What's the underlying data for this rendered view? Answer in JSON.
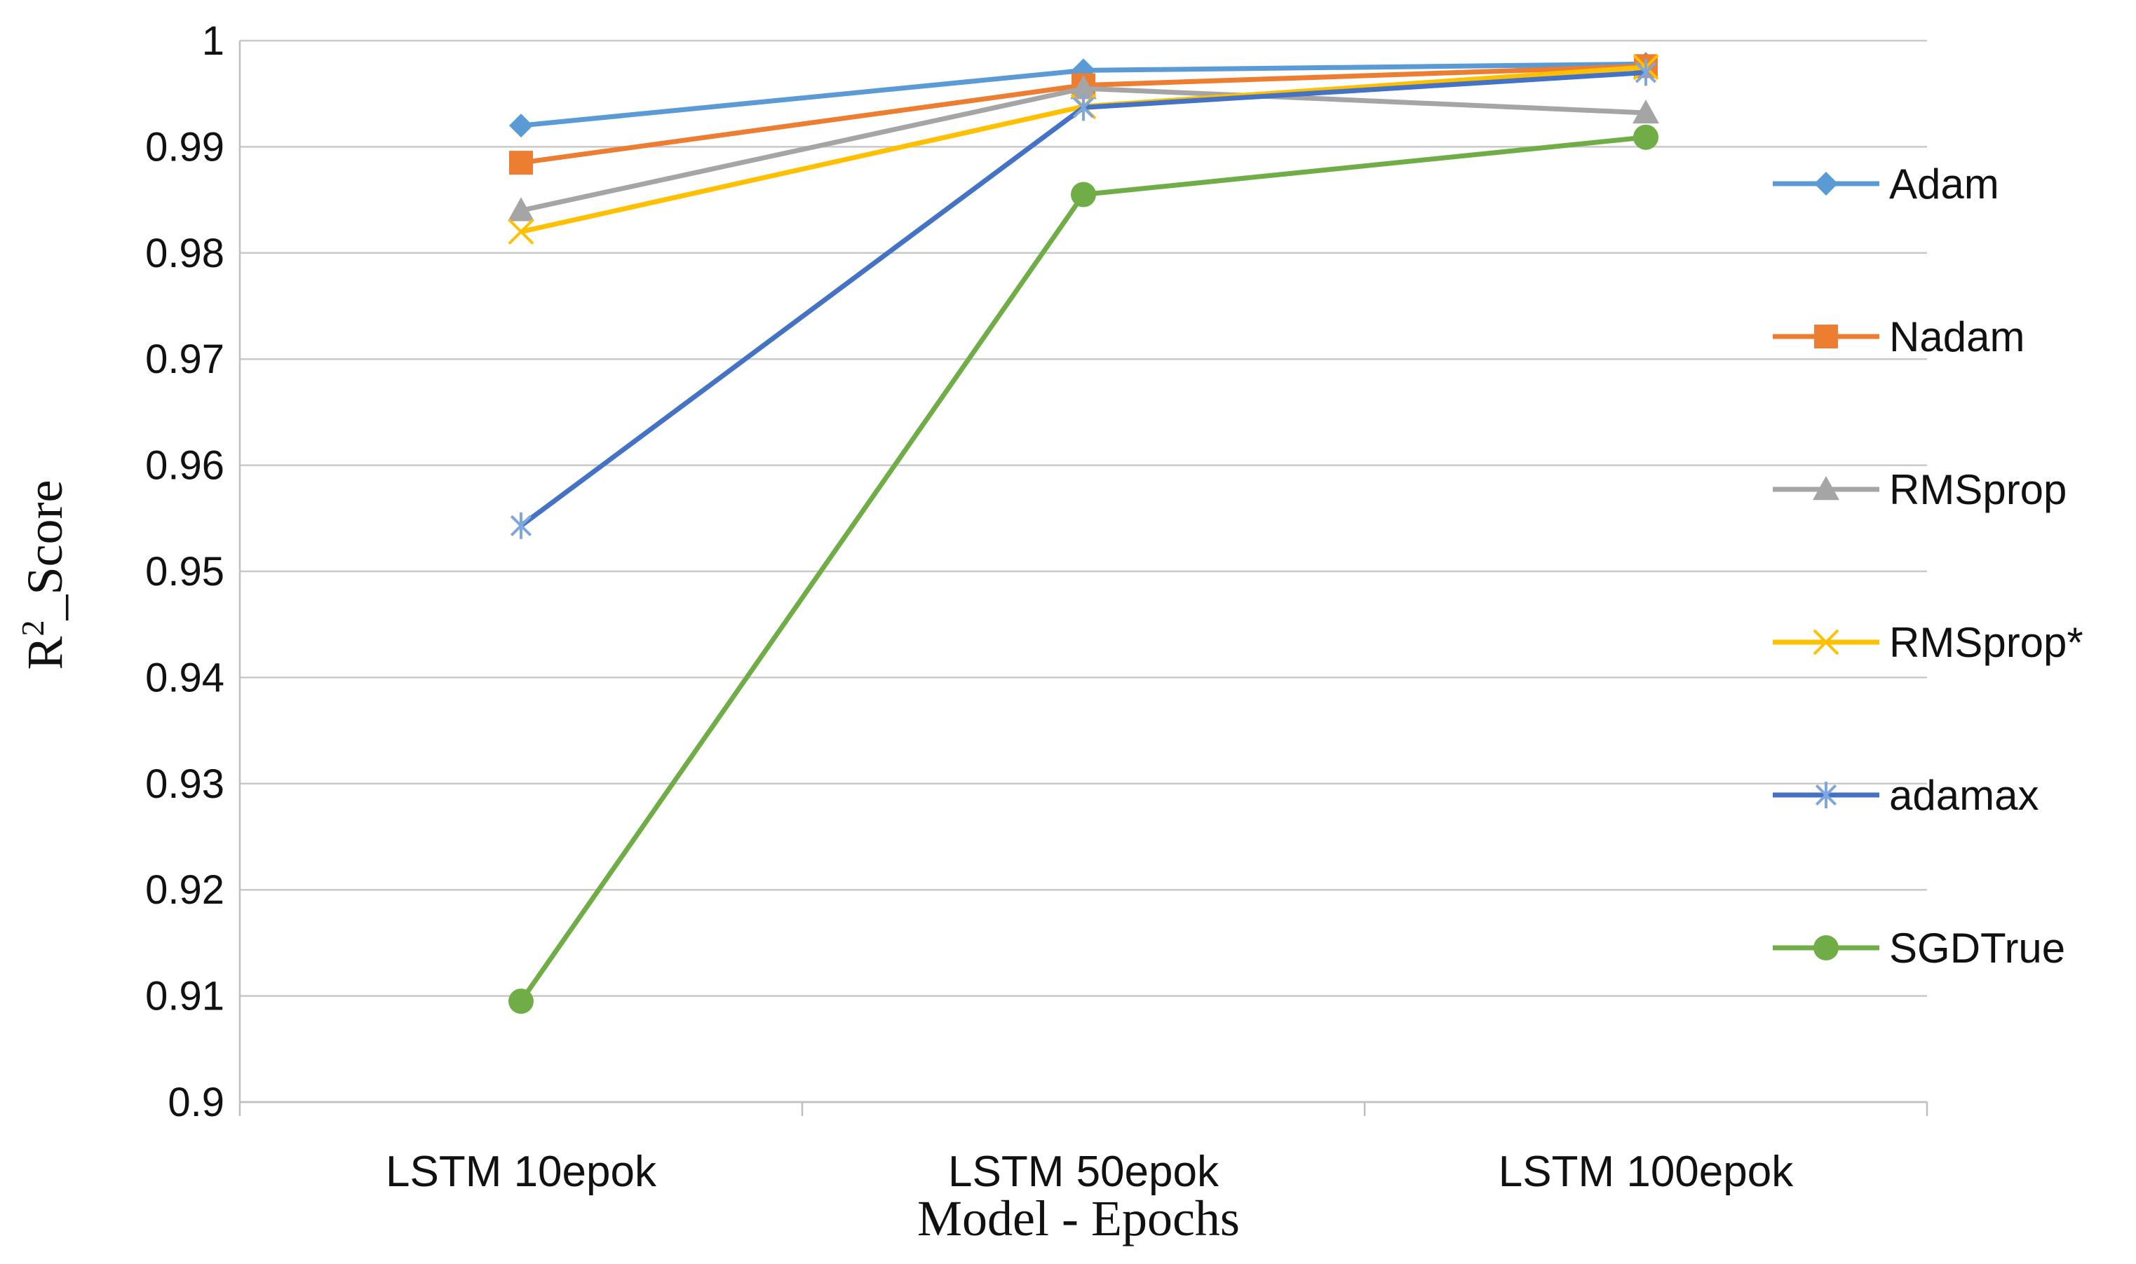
{
  "chart_data": {
    "type": "line",
    "categories": [
      "LSTM 10epok",
      "LSTM 50epok",
      "LSTM 100epok"
    ],
    "xlabel": "Model - Epochs",
    "ylabel_main": "R",
    "ylabel_sup": "2",
    "ylabel_rest": "_Score",
    "ylim": [
      0.9,
      1.0
    ],
    "yticks": [
      0.9,
      0.91,
      0.92,
      0.93,
      0.94,
      0.95,
      0.96,
      0.97,
      0.98,
      0.99,
      1.0
    ],
    "ytick_labels": [
      "0.9",
      "0.91",
      "0.92",
      "0.93",
      "0.94",
      "0.95",
      "0.96",
      "0.97",
      "0.98",
      "0.99",
      "1"
    ],
    "grid": true,
    "legend_position": "right",
    "series": [
      {
        "name": "Adam",
        "color": "#5B9BD5",
        "marker": "diamond",
        "values": [
          0.992,
          0.9972,
          0.9978
        ]
      },
      {
        "name": "Nadam",
        "color": "#ED7D31",
        "marker": "square",
        "values": [
          0.9885,
          0.9958,
          0.9976
        ]
      },
      {
        "name": "RMSprop",
        "color": "#A5A5A5",
        "marker": "triangle",
        "values": [
          0.984,
          0.9955,
          0.9932
        ]
      },
      {
        "name": "RMSprop*",
        "color": "#FFC000",
        "marker": "x",
        "values": [
          0.982,
          0.9938,
          0.9975
        ]
      },
      {
        "name": "adamax",
        "color": "#4472C4",
        "marker": "star",
        "values": [
          0.9543,
          0.9937,
          0.997
        ]
      },
      {
        "name": "SGDTrue",
        "color": "#70AD47",
        "marker": "circle",
        "values": [
          0.9095,
          0.9855,
          0.9909
        ]
      }
    ]
  }
}
